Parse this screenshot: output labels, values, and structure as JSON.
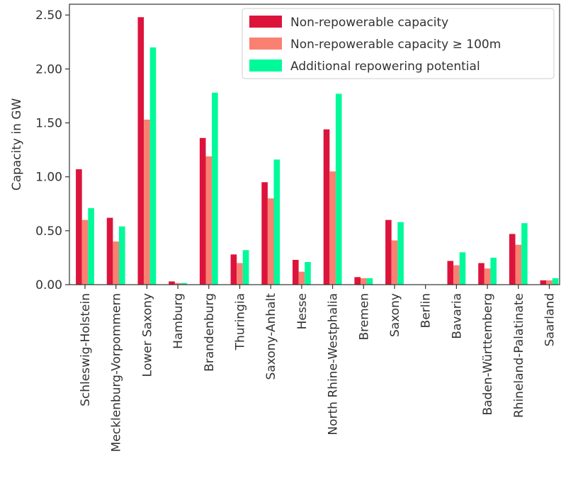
{
  "chart_data": {
    "type": "bar",
    "title": "",
    "xlabel": "",
    "ylabel": "Capacity in GW",
    "ylim": [
      0,
      2.6
    ],
    "yticks": [
      "0.00",
      "0.50",
      "1.00",
      "1.50",
      "2.00",
      "2.50"
    ],
    "categories": [
      "Schleswig-Holstein",
      "Mecklenburg-Vorpommern",
      "Lower Saxony",
      "Hamburg",
      "Brandenburg",
      "Thuringia",
      "Saxony-Anhalt",
      "Hesse",
      "North Rhine-Westphalia",
      "Bremen",
      "Saxony",
      "Berlin",
      "Bavaria",
      "Baden-Württemberg",
      "Rhineland-Palatinate",
      "Saarland"
    ],
    "series": [
      {
        "name": "Non-repowerable capacity",
        "color": "#dc143c",
        "values": [
          1.07,
          0.62,
          2.48,
          0.03,
          1.36,
          0.28,
          0.95,
          0.23,
          1.44,
          0.07,
          0.6,
          0.0,
          0.22,
          0.2,
          0.47,
          0.04
        ]
      },
      {
        "name": "Non-repowerable capacity ≥ 100m",
        "color": "#fa8072",
        "values": [
          0.6,
          0.4,
          1.53,
          0.015,
          1.19,
          0.2,
          0.8,
          0.12,
          1.05,
          0.06,
          0.41,
          0.0,
          0.18,
          0.15,
          0.37,
          0.04
        ]
      },
      {
        "name": "Additional repowering potential",
        "color": "#00fa9a",
        "values": [
          0.71,
          0.54,
          2.2,
          0.015,
          1.78,
          0.32,
          1.16,
          0.21,
          1.77,
          0.06,
          0.58,
          0.0,
          0.3,
          0.25,
          0.57,
          0.06
        ]
      }
    ],
    "legend": {
      "position": "top-right"
    },
    "grid": false
  }
}
